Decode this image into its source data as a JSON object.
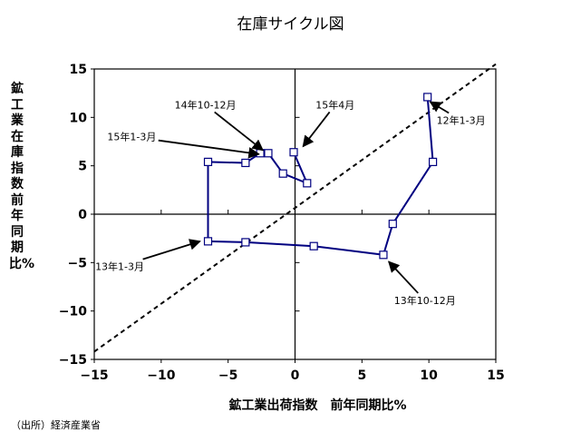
{
  "chart_data": {
    "type": "line",
    "title": "在庫サイクル図",
    "xlabel": "鉱工業出荷指数　前年同期比%",
    "ylabel": "鉱工業在庫指数　前年同期比%",
    "xlim": [
      -15,
      15
    ],
    "ylim": [
      -15,
      15
    ],
    "xticks": [
      -15,
      -10,
      -5,
      0,
      5,
      10,
      15
    ],
    "yticks": [
      -15,
      -10,
      -5,
      0,
      5,
      10,
      15
    ],
    "grid": false,
    "series": [
      {
        "color": "#000080",
        "marker": "square-open",
        "points": [
          {
            "x": 9.9,
            "y": 12.1
          },
          {
            "x": 10.3,
            "y": 5.4
          },
          {
            "x": 7.3,
            "y": -1.0
          },
          {
            "x": 6.6,
            "y": -4.2
          },
          {
            "x": 1.4,
            "y": -3.3
          },
          {
            "x": -3.7,
            "y": -2.9
          },
          {
            "x": -6.5,
            "y": -2.8
          },
          {
            "x": -6.5,
            "y": 5.4
          },
          {
            "x": -3.7,
            "y": 5.3
          },
          {
            "x": -2.6,
            "y": 6.3
          },
          {
            "x": -2.0,
            "y": 6.3
          },
          {
            "x": -0.9,
            "y": 4.2
          },
          {
            "x": 0.9,
            "y": 3.2
          },
          {
            "x": -0.1,
            "y": 6.4
          }
        ]
      }
    ],
    "reference_line": {
      "style": "dashed",
      "color": "#000000",
      "from": [
        -15,
        -14.2
      ],
      "to": [
        15,
        15.5
      ]
    },
    "annotations": [
      {
        "text": "14年10-12月",
        "label_x": -6.7,
        "label_y": 11.3,
        "target_x": -2.4,
        "target_y": 6.6
      },
      {
        "text": "15年4月",
        "label_x": 3.0,
        "label_y": 11.3,
        "target_x": 0.6,
        "target_y": 7.0
      },
      {
        "text": "12年1-3月",
        "label_x": 12.4,
        "label_y": 9.7,
        "target_x": 10.1,
        "target_y": 11.6
      },
      {
        "text": "15年1-3月",
        "label_x": -12.2,
        "label_y": 8.0,
        "target_x": -2.7,
        "target_y": 6.2
      },
      {
        "text": "13年1-3月",
        "label_x": -13.1,
        "label_y": -5.4,
        "target_x": -7.1,
        "target_y": -2.8
      },
      {
        "text": "13年10-12月",
        "label_x": 9.7,
        "label_y": -8.9,
        "target_x": 7.0,
        "target_y": -4.9
      }
    ]
  },
  "source_note": "（出所）経済産業省"
}
